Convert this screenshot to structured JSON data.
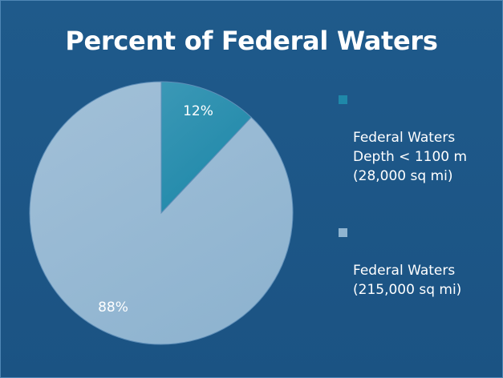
{
  "chart_data": {
    "type": "pie",
    "title": "Percent of Federal Waters",
    "slices": [
      {
        "name": "Federal Waters\nDepth < 1100 m\n(28,000 sq mi)",
        "value": 12,
        "label": "12%",
        "color": "#1f88a9",
        "color_light": "#3b98b6"
      },
      {
        "name": "Federal Waters\n(215,000 sq mi)",
        "value": 88,
        "label": "88%",
        "color": "#8fb4d0",
        "color_light": "#a2c0d8"
      }
    ],
    "start_angle_deg": 0,
    "direction": "clockwise",
    "legend_position": "right"
  },
  "colors": {
    "background": "#1f5a8b",
    "border": "#4f86b5",
    "text": "#ffffff"
  }
}
